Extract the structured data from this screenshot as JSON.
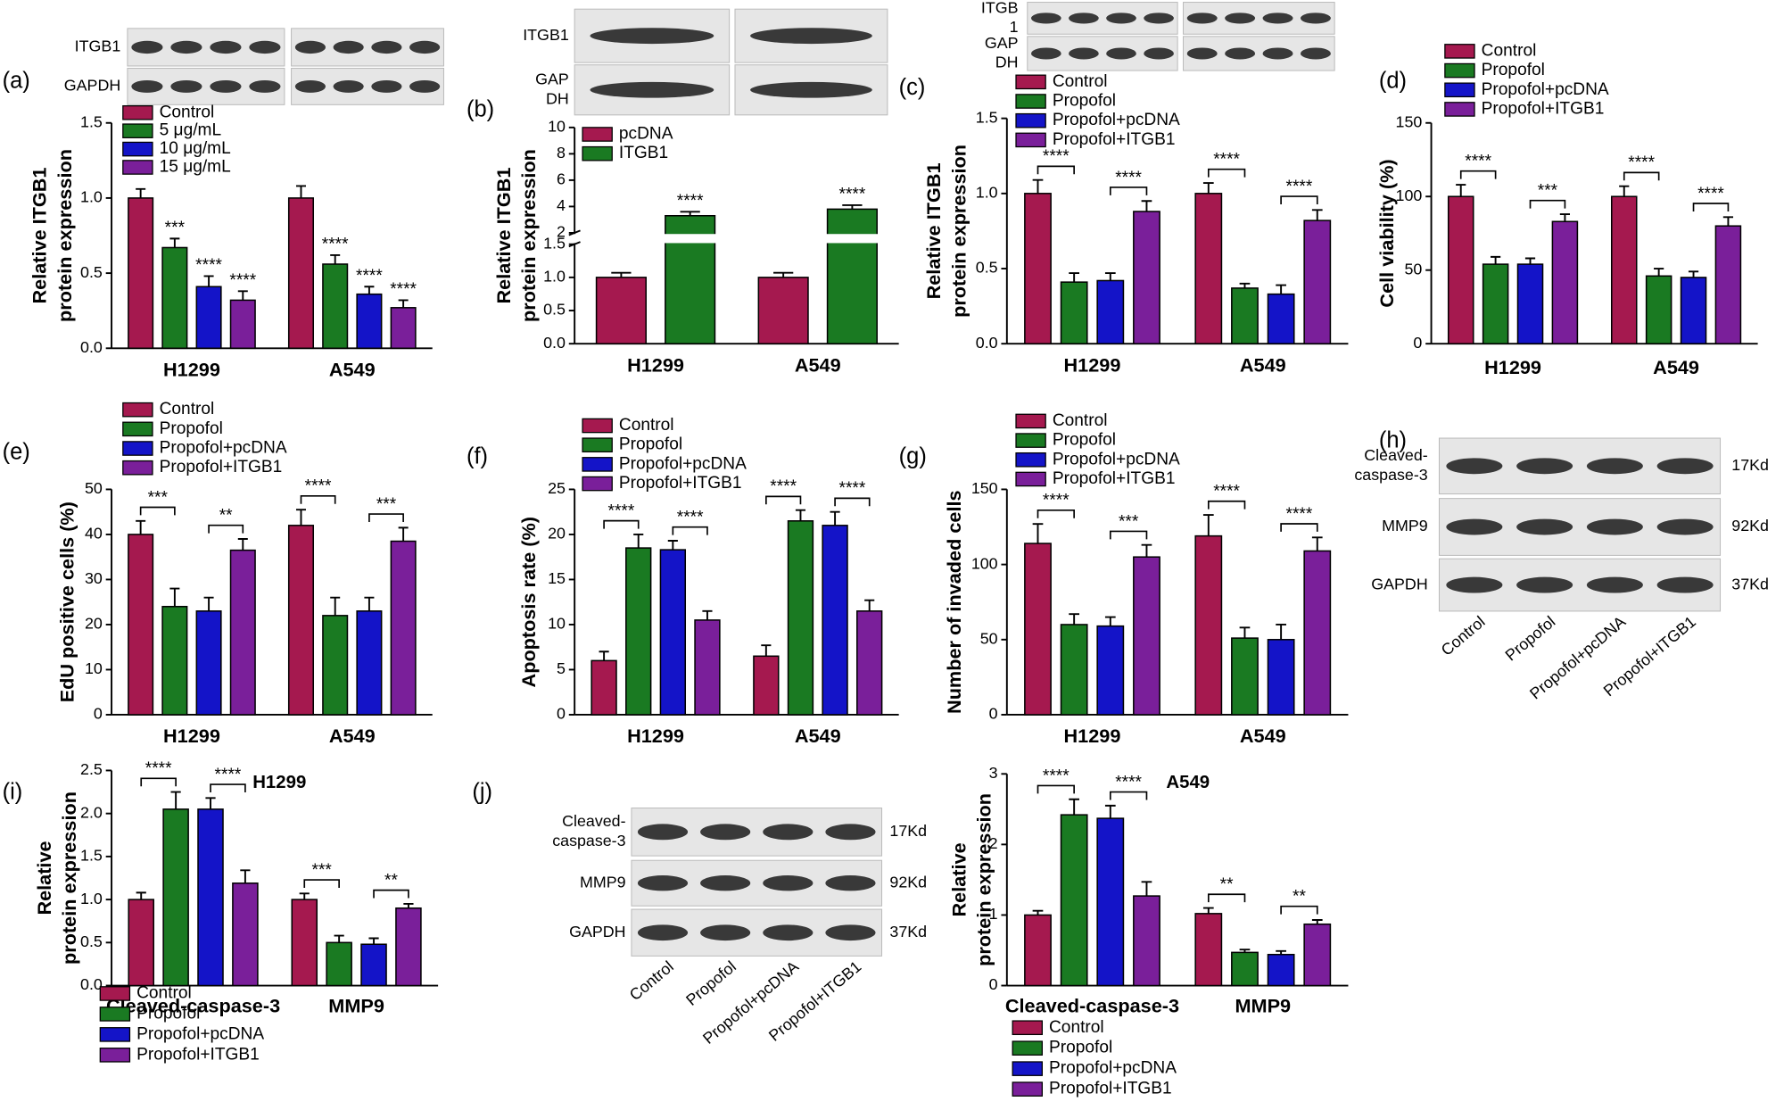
{
  "panel_labels": [
    "(a)",
    "(b)",
    "(c)",
    "(d)",
    "(e)",
    "(f)",
    "(g)",
    "(h)",
    "(i)",
    "(j)"
  ],
  "blots": [
    {
      "rows": [
        [
          "ITGB1"
        ],
        [
          "GAPDH"
        ]
      ]
    },
    {
      "rows": [
        [
          "ITGB1"
        ],
        [
          "GAP",
          "DH"
        ]
      ]
    },
    {
      "rows": [
        [
          "ITGB",
          "1"
        ],
        [
          "GAP",
          "DH"
        ]
      ]
    },
    {
      "rows": [
        [
          "Cleaved-",
          "caspase-3"
        ],
        [
          "MMP9"
        ],
        [
          "GAPDH"
        ]
      ],
      "sizes": [
        "17Kd",
        "92Kd",
        "37Kd"
      ],
      "lanes": [
        "Control",
        "Propofol",
        "Propofol+pcDNA",
        "Propofol+ITGB1"
      ]
    },
    {
      "rows": [
        [
          "Cleaved-",
          "caspase-3"
        ],
        [
          "MMP9"
        ],
        [
          "GAPDH"
        ]
      ],
      "sizes": [
        "17Kd",
        "92Kd",
        "37Kd"
      ],
      "lanes": [
        "Control",
        "Propofol",
        "Propofol+pcDNA",
        "Propofol+ITGB1"
      ]
    }
  ],
  "chart_data": [
    {
      "type": "bar",
      "ylabel": [
        "Relative ITGB1",
        "protein expression"
      ],
      "categories": [
        "H1299",
        "A549"
      ],
      "series": [
        {
          "name": "Control",
          "color": "#a5194f",
          "values": [
            1.0,
            1.0
          ],
          "errors": [
            0.06,
            0.08
          ]
        },
        {
          "name": "5 μg/mL",
          "color": "#1a7a22",
          "values": [
            0.67,
            0.56
          ],
          "errors": [
            0.06,
            0.06
          ]
        },
        {
          "name": "10 μg/mL",
          "color": "#1414c8",
          "values": [
            0.41,
            0.36
          ],
          "errors": [
            0.07,
            0.05
          ]
        },
        {
          "name": "15 μg/mL",
          "color": "#7a1f9a",
          "values": [
            0.32,
            0.27
          ],
          "errors": [
            0.06,
            0.05
          ]
        }
      ],
      "ylim": [
        0,
        1.5
      ],
      "yticks": [
        {
          "value": 0,
          "label": "0.0"
        },
        0.5,
        {
          "value": 1,
          "label": "1.0"
        },
        1.5
      ],
      "significance": [
        [
          "***",
          "****",
          "****"
        ],
        [
          "****",
          "****",
          "****"
        ]
      ]
    },
    {
      "type": "bar",
      "ylabel": [
        "Relative ITGB1",
        "protein expression"
      ],
      "categories": [
        "H1299",
        "A549"
      ],
      "series": [
        {
          "name": "pcDNA",
          "color": "#a5194f",
          "values": [
            1.0,
            1.0
          ],
          "errors": [
            0.07,
            0.07
          ]
        },
        {
          "name": "ITGB1",
          "color": "#1a7a22",
          "values": [
            3.3,
            3.8
          ],
          "errors": [
            0.3,
            0.3
          ]
        }
      ],
      "ylim": [
        0,
        10
      ],
      "ybreak": [
        1.5,
        2
      ],
      "yticks": [
        {
          "value": 0,
          "label": "0.0"
        },
        0.5,
        {
          "value": 1,
          "label": "1.0"
        },
        1.5,
        2,
        4,
        6,
        8,
        10
      ],
      "significance": [
        [
          "****"
        ],
        [
          "****"
        ]
      ]
    },
    {
      "type": "bar",
      "ylabel": [
        "Relative ITGB1",
        "protein expression"
      ],
      "categories": [
        "H1299",
        "A549"
      ],
      "series": [
        {
          "name": "Control",
          "color": "#a5194f",
          "values": [
            1.0,
            1.0
          ],
          "errors": [
            0.09,
            0.07
          ]
        },
        {
          "name": "Propofol",
          "color": "#1a7a22",
          "values": [
            0.41,
            0.37
          ],
          "errors": [
            0.06,
            0.03
          ]
        },
        {
          "name": "Propofol+pcDNA",
          "color": "#1414c8",
          "values": [
            0.42,
            0.33
          ],
          "errors": [
            0.05,
            0.06
          ]
        },
        {
          "name": "Propofol+ITGB1",
          "color": "#7a1f9a",
          "values": [
            0.88,
            0.82
          ],
          "errors": [
            0.07,
            0.07
          ]
        }
      ],
      "ylim": [
        0,
        1.5
      ],
      "yticks": [
        {
          "value": 0,
          "label": "0.0"
        },
        0.5,
        {
          "value": 1,
          "label": "1.0"
        },
        1.5
      ],
      "significance": [
        [
          "****",
          "****"
        ],
        [
          "****",
          "****"
        ]
      ]
    },
    {
      "type": "bar",
      "ylabel": [
        "Cell viability (%)"
      ],
      "categories": [
        "H1299",
        "A549"
      ],
      "series": [
        {
          "name": "Control",
          "color": "#a5194f",
          "values": [
            100,
            100
          ],
          "errors": [
            8,
            7
          ]
        },
        {
          "name": "Propofol",
          "color": "#1a7a22",
          "values": [
            54,
            46
          ],
          "errors": [
            5,
            5
          ]
        },
        {
          "name": "Propofol+pcDNA",
          "color": "#1414c8",
          "values": [
            54,
            45
          ],
          "errors": [
            4,
            4
          ]
        },
        {
          "name": "Propofol+ITGB1",
          "color": "#7a1f9a",
          "values": [
            83,
            80
          ],
          "errors": [
            5,
            6
          ]
        }
      ],
      "ylim": [
        0,
        150
      ],
      "yticks": [
        0,
        50,
        100,
        150
      ],
      "significance": [
        [
          "****",
          "***"
        ],
        [
          "****",
          "****"
        ]
      ]
    },
    {
      "type": "bar",
      "ylabel": [
        "EdU positive cells (%)"
      ],
      "categories": [
        "H1299",
        "A549"
      ],
      "series": [
        {
          "name": "Control",
          "color": "#a5194f",
          "values": [
            40,
            42
          ],
          "errors": [
            3,
            3.5
          ]
        },
        {
          "name": "Propofol",
          "color": "#1a7a22",
          "values": [
            24,
            22
          ],
          "errors": [
            4,
            4
          ]
        },
        {
          "name": "Propofol+pcDNA",
          "color": "#1414c8",
          "values": [
            23,
            23
          ],
          "errors": [
            3,
            3
          ]
        },
        {
          "name": "Propofol+ITGB1",
          "color": "#7a1f9a",
          "values": [
            36.5,
            38.5
          ],
          "errors": [
            2.5,
            3
          ]
        }
      ],
      "ylim": [
        0,
        50
      ],
      "yticks": [
        0,
        10,
        20,
        30,
        40,
        50
      ],
      "significance": [
        [
          "***",
          "**"
        ],
        [
          "****",
          "***"
        ]
      ]
    },
    {
      "type": "bar",
      "ylabel": [
        "Apoptosis rate (%)"
      ],
      "categories": [
        "H1299",
        "A549"
      ],
      "series": [
        {
          "name": "Control",
          "color": "#a5194f",
          "values": [
            6,
            6.5
          ],
          "errors": [
            1,
            1.2
          ]
        },
        {
          "name": "Propofol",
          "color": "#1a7a22",
          "values": [
            18.5,
            21.5
          ],
          "errors": [
            1.5,
            1.2
          ]
        },
        {
          "name": "Propofol+pcDNA",
          "color": "#1414c8",
          "values": [
            18.3,
            21
          ],
          "errors": [
            1,
            1.5
          ]
        },
        {
          "name": "Propofol+ITGB1",
          "color": "#7a1f9a",
          "values": [
            10.5,
            11.5
          ],
          "errors": [
            1,
            1.2
          ]
        }
      ],
      "ylim": [
        0,
        25
      ],
      "yticks": [
        0,
        5,
        10,
        15,
        20,
        25
      ],
      "significance": [
        [
          "****",
          "****"
        ],
        [
          "****",
          "****"
        ]
      ]
    },
    {
      "type": "bar",
      "ylabel": [
        "Number of invaded cells"
      ],
      "categories": [
        "H1299",
        "A549"
      ],
      "series": [
        {
          "name": "Control",
          "color": "#a5194f",
          "values": [
            114,
            119
          ],
          "errors": [
            13,
            14
          ]
        },
        {
          "name": "Propofol",
          "color": "#1a7a22",
          "values": [
            60,
            51
          ],
          "errors": [
            7,
            7
          ]
        },
        {
          "name": "Propofol+pcDNA",
          "color": "#1414c8",
          "values": [
            59,
            50
          ],
          "errors": [
            6,
            10
          ]
        },
        {
          "name": "Propofol+ITGB1",
          "color": "#7a1f9a",
          "values": [
            105,
            109
          ],
          "errors": [
            8,
            9
          ]
        }
      ],
      "ylim": [
        0,
        150
      ],
      "yticks": [
        0,
        50,
        100,
        150
      ],
      "significance": [
        [
          "****",
          "***"
        ],
        [
          "****",
          "****"
        ]
      ]
    },
    {
      "type": "bar",
      "ylabel": [
        "Relative",
        "protein expression"
      ],
      "annotation": "H1299",
      "categories": [
        "Cleaved-caspase-3",
        "MMP9"
      ],
      "series": [
        {
          "name": "Control",
          "color": "#a5194f",
          "values": [
            1.0,
            1.0
          ],
          "errors": [
            0.08,
            0.07
          ]
        },
        {
          "name": "Propofol",
          "color": "#1a7a22",
          "values": [
            2.05,
            0.5
          ],
          "errors": [
            0.2,
            0.08
          ]
        },
        {
          "name": "Propofol+pcDNA",
          "color": "#1414c8",
          "values": [
            2.05,
            0.48
          ],
          "errors": [
            0.13,
            0.07
          ]
        },
        {
          "name": "Propofol+ITGB1",
          "color": "#7a1f9a",
          "values": [
            1.19,
            0.9
          ],
          "errors": [
            0.15,
            0.05
          ]
        }
      ],
      "ylim": [
        0,
        2.5
      ],
      "yticks": [
        {
          "value": 0,
          "label": "0.0"
        },
        0.5,
        {
          "value": 1,
          "label": "1.0"
        },
        1.5,
        {
          "value": 2,
          "label": "2.0"
        },
        2.5
      ],
      "significance": [
        [
          "****",
          "****"
        ],
        [
          "***",
          "**"
        ]
      ]
    },
    {
      "type": "bar",
      "ylabel": [
        "Relative",
        "protein expression"
      ],
      "annotation": "A549",
      "categories": [
        "Cleaved-caspase-3",
        "MMP9"
      ],
      "series": [
        {
          "name": "Control",
          "color": "#a5194f",
          "values": [
            1.0,
            1.02
          ],
          "errors": [
            0.06,
            0.08
          ]
        },
        {
          "name": "Propofol",
          "color": "#1a7a22",
          "values": [
            2.42,
            0.47
          ],
          "errors": [
            0.22,
            0.04
          ]
        },
        {
          "name": "Propofol+pcDNA",
          "color": "#1414c8",
          "values": [
            2.37,
            0.44
          ],
          "errors": [
            0.18,
            0.05
          ]
        },
        {
          "name": "Propofol+ITGB1",
          "color": "#7a1f9a",
          "values": [
            1.27,
            0.87
          ],
          "errors": [
            0.2,
            0.06
          ]
        }
      ],
      "ylim": [
        0,
        3
      ],
      "yticks": [
        0,
        1,
        2,
        3
      ],
      "significance": [
        [
          "****",
          "****"
        ],
        [
          "**",
          "**"
        ]
      ]
    }
  ]
}
